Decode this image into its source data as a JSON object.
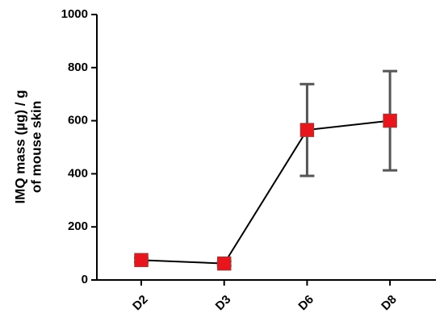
{
  "chart_data": {
    "type": "line",
    "ylabel": [
      "IMQ mass (µg) / g",
      "of mouse skin"
    ],
    "categories": [
      "D2",
      "D3",
      "D6",
      "D8"
    ],
    "values": [
      75,
      62,
      565,
      600
    ],
    "errors": [
      8,
      8,
      173,
      187
    ],
    "color": "#e8161c",
    "line_color": "#000000",
    "error_color": "#555555",
    "ylim": [
      0,
      1000
    ],
    "yticks": [
      0,
      200,
      400,
      600,
      800,
      1000
    ]
  }
}
